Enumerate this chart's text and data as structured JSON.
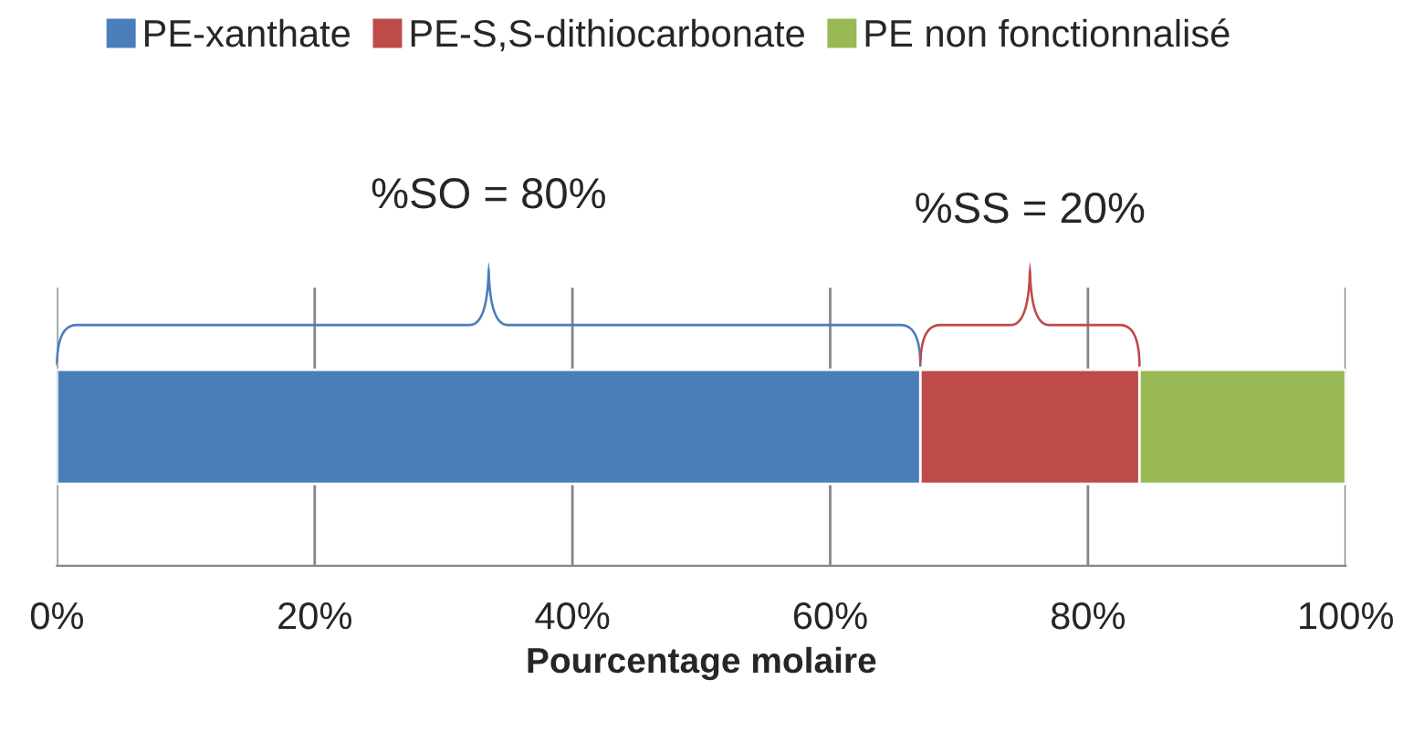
{
  "chart_data": {
    "type": "bar",
    "orientation": "horizontal",
    "stacked": true,
    "categories": [
      null
    ],
    "series": [
      {
        "name": "PE-xanthate",
        "color": "#4a7ebb",
        "values": [
          67
        ]
      },
      {
        "name": "PE-S,S-dithiocarbonate",
        "color": "#be4b48",
        "values": [
          17
        ]
      },
      {
        "name": "PE non fonctionnalisé",
        "color": "#98b954",
        "values": [
          16
        ]
      }
    ],
    "xlim": [
      0,
      100
    ],
    "xticks": [
      {
        "value": 0,
        "label": "0%"
      },
      {
        "value": 20,
        "label": "20%"
      },
      {
        "value": 40,
        "label": "40%"
      },
      {
        "value": 60,
        "label": "60%"
      },
      {
        "value": 80,
        "label": "80%"
      },
      {
        "value": 100,
        "label": "100%"
      }
    ],
    "xlabel": "Pourcentage molaire",
    "grid": "x",
    "legend": "top",
    "tick_labels": "x",
    "annotations": [
      "%SO = 80%",
      "%SS = 20%"
    ]
  }
}
